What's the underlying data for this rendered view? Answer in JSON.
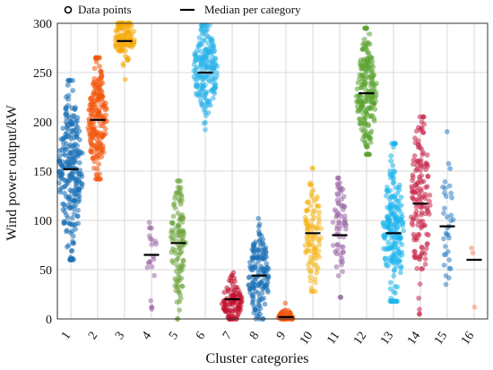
{
  "chart_data": {
    "type": "scatter",
    "subtype": "beeswarm",
    "xlabel": "Cluster categories",
    "ylabel": "Wind power output/kW",
    "ylim": [
      0,
      300
    ],
    "yticks": [
      0,
      50,
      100,
      150,
      200,
      250,
      300
    ],
    "grid": true,
    "legend": {
      "placement": "top",
      "entries": [
        {
          "label": "Data points",
          "marker": "circle"
        },
        {
          "label": "Median per category",
          "marker": "line"
        }
      ]
    },
    "categories": [
      "1",
      "2",
      "3",
      "4",
      "5",
      "6",
      "7",
      "8",
      "9",
      "10",
      "11",
      "12",
      "13",
      "14",
      "15",
      "16"
    ],
    "series": [
      {
        "category": "1",
        "color": "#1a6fb5",
        "median": 152,
        "min": 60,
        "max": 242,
        "peak": 150,
        "spread": 0.95,
        "count": 260
      },
      {
        "category": "2",
        "color": "#f2560c",
        "median": 202,
        "min": 142,
        "max": 265,
        "peak": 200,
        "spread": 0.75,
        "count": 200
      },
      {
        "category": "3",
        "color": "#f5a90a",
        "median": 282,
        "min": 243,
        "max": 300,
        "peak": 285,
        "spread": 0.8,
        "count": 120
      },
      {
        "category": "4",
        "color": "#9d6aa8",
        "median": 65,
        "min": 10,
        "max": 98,
        "peak": 65,
        "spread": 0.4,
        "count": 22
      },
      {
        "category": "5",
        "color": "#6ca33a",
        "median": 77,
        "min": 0,
        "max": 140,
        "peak": 78,
        "spread": 0.6,
        "count": 110
      },
      {
        "category": "6",
        "color": "#29b3e8",
        "median": 250,
        "min": 192,
        "max": 298,
        "peak": 252,
        "spread": 0.95,
        "count": 190
      },
      {
        "category": "7",
        "color": "#c0102e",
        "median": 20,
        "min": 0,
        "max": 47,
        "peak": 18,
        "spread": 0.8,
        "count": 100
      },
      {
        "category": "8",
        "color": "#1a6fb5",
        "median": 44,
        "min": 0,
        "max": 102,
        "peak": 42,
        "spread": 0.85,
        "count": 150
      },
      {
        "category": "9",
        "color": "#f2560c",
        "median": 2,
        "min": 0,
        "max": 16,
        "peak": 2,
        "spread": 0.6,
        "count": 60
      },
      {
        "category": "10",
        "color": "#f5b71f",
        "median": 87,
        "min": 28,
        "max": 153,
        "peak": 88,
        "spread": 0.65,
        "count": 110
      },
      {
        "category": "11",
        "color": "#9d6aa8",
        "median": 85,
        "min": 22,
        "max": 143,
        "peak": 88,
        "spread": 0.55,
        "count": 70
      },
      {
        "category": "12",
        "color": "#5aa330",
        "median": 229,
        "min": 167,
        "max": 295,
        "peak": 228,
        "spread": 0.8,
        "count": 200
      },
      {
        "category": "13",
        "color": "#19b4ec",
        "median": 87,
        "min": 18,
        "max": 178,
        "peak": 87,
        "spread": 0.85,
        "count": 200
      },
      {
        "category": "14",
        "color": "#c9274b",
        "median": 117,
        "min": 5,
        "max": 205,
        "peak": 120,
        "spread": 0.75,
        "count": 150
      },
      {
        "category": "15",
        "color": "#2f7fc4",
        "median": 94,
        "min": 35,
        "max": 190,
        "peak": 95,
        "spread": 0.5,
        "count": 35
      },
      {
        "category": "16",
        "color": "#f28a6b",
        "median": 60,
        "min": 12,
        "max": 72,
        "peak": 60,
        "spread": 0.35,
        "count": 3
      }
    ]
  }
}
